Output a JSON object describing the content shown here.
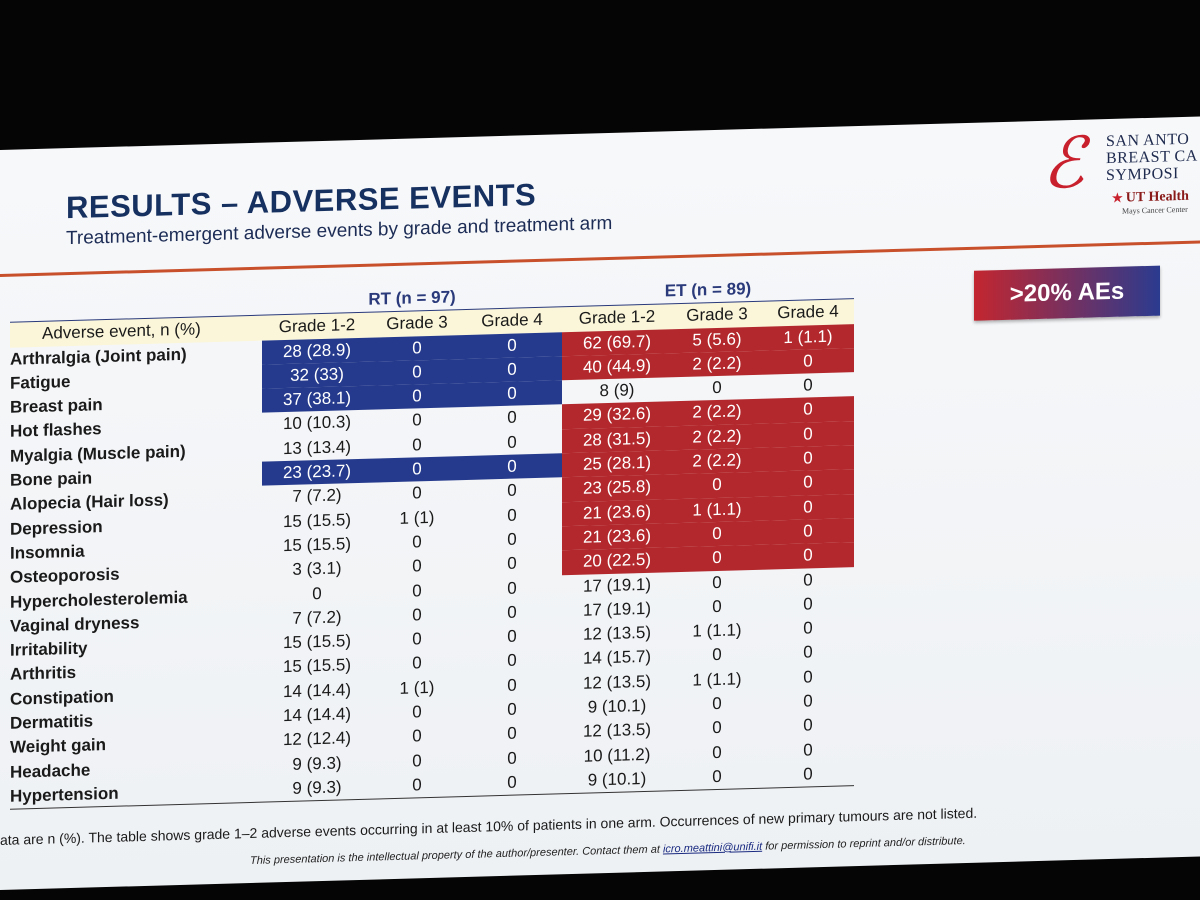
{
  "slide": {
    "title": "RESULTS – ADVERSE EVENTS",
    "subtitle": "Treatment-emergent adverse events by grade and treatment arm",
    "badge": ">20% AEs",
    "logo": {
      "line1": "SAN ANTO",
      "line2": "BREAST CA",
      "line3": "SYMPOSI",
      "ut": "UT Health",
      "ut_sub": "Mays Cancer Center"
    },
    "footnote": "ata are n (%). The table shows grade 1–2 adverse events occurring in at least 10% of patients in one arm. Occurrences of new primary tumours are not listed.",
    "copyright_pre": "This presentation is the intellectual property of the author/presenter. Contact them at",
    "copyright_email": "icro.meattini@unifi.it",
    "copyright_post": "for permission to reprint and/or distribute.",
    "colors": {
      "rt_highlight": "#253a8c",
      "et_highlight": "#b3282c",
      "title": "#16305f",
      "accent_rule": "#c8502b"
    }
  },
  "table": {
    "arm_rt": "RT (n = 97)",
    "arm_et": "ET (n = 89)",
    "headers": [
      "Adverse event, n (%)",
      "Grade 1-2",
      "Grade 3",
      "Grade 4",
      "Grade 1-2",
      "Grade 3",
      "Grade 4"
    ],
    "rows": [
      {
        "event": "Arthralgia (Joint pain)",
        "rt": [
          "28 (28.9)",
          "0",
          "0"
        ],
        "et": [
          "62 (69.7)",
          "5 (5.6)",
          "1 (1.1)"
        ]
      },
      {
        "event": "Fatigue",
        "rt": [
          "32 (33)",
          "0",
          "0"
        ],
        "et": [
          "40 (44.9)",
          "2 (2.2)",
          "0"
        ]
      },
      {
        "event": "Breast pain",
        "rt": [
          "37 (38.1)",
          "0",
          "0"
        ],
        "et": [
          "8 (9)",
          "0",
          "0"
        ]
      },
      {
        "event": "Hot flashes",
        "rt": [
          "10 (10.3)",
          "0",
          "0"
        ],
        "et": [
          "29 (32.6)",
          "2 (2.2)",
          "0"
        ]
      },
      {
        "event": "Myalgia (Muscle pain)",
        "rt": [
          "13 (13.4)",
          "0",
          "0"
        ],
        "et": [
          "28 (31.5)",
          "2 (2.2)",
          "0"
        ]
      },
      {
        "event": "Bone pain",
        "rt": [
          "23 (23.7)",
          "0",
          "0"
        ],
        "et": [
          "25 (28.1)",
          "2 (2.2)",
          "0"
        ]
      },
      {
        "event": "Alopecia (Hair loss)",
        "rt": [
          "7 (7.2)",
          "0",
          "0"
        ],
        "et": [
          "23 (25.8)",
          "0",
          "0"
        ]
      },
      {
        "event": "Depression",
        "rt": [
          "15 (15.5)",
          "1 (1)",
          "0"
        ],
        "et": [
          "21 (23.6)",
          "1 (1.1)",
          "0"
        ]
      },
      {
        "event": "Insomnia",
        "rt": [
          "15 (15.5)",
          "0",
          "0"
        ],
        "et": [
          "21 (23.6)",
          "0",
          "0"
        ]
      },
      {
        "event": "Osteoporosis",
        "rt": [
          "3 (3.1)",
          "0",
          "0"
        ],
        "et": [
          "20 (22.5)",
          "0",
          "0"
        ]
      },
      {
        "event": "Hypercholesterolemia",
        "rt": [
          "0",
          "0",
          "0"
        ],
        "et": [
          "17 (19.1)",
          "0",
          "0"
        ]
      },
      {
        "event": "Vaginal dryness",
        "rt": [
          "7 (7.2)",
          "0",
          "0"
        ],
        "et": [
          "17 (19.1)",
          "0",
          "0"
        ]
      },
      {
        "event": "Irritability",
        "rt": [
          "15 (15.5)",
          "0",
          "0"
        ],
        "et": [
          "12 (13.5)",
          "1 (1.1)",
          "0"
        ]
      },
      {
        "event": "Arthritis",
        "rt": [
          "15 (15.5)",
          "0",
          "0"
        ],
        "et": [
          "14 (15.7)",
          "0",
          "0"
        ]
      },
      {
        "event": "Constipation",
        "rt": [
          "14 (14.4)",
          "1 (1)",
          "0"
        ],
        "et": [
          "12 (13.5)",
          "1 (1.1)",
          "0"
        ]
      },
      {
        "event": "Dermatitis",
        "rt": [
          "14 (14.4)",
          "0",
          "0"
        ],
        "et": [
          "9 (10.1)",
          "0",
          "0"
        ]
      },
      {
        "event": "Weight gain",
        "rt": [
          "12 (12.4)",
          "0",
          "0"
        ],
        "et": [
          "12 (13.5)",
          "0",
          "0"
        ]
      },
      {
        "event": "Headache",
        "rt": [
          "9 (9.3)",
          "0",
          "0"
        ],
        "et": [
          "10 (11.2)",
          "0",
          "0"
        ]
      },
      {
        "event": "Hypertension",
        "rt": [
          "9 (9.3)",
          "0",
          "0"
        ],
        "et": [
          "9 (10.1)",
          "0",
          "0"
        ]
      }
    ]
  }
}
